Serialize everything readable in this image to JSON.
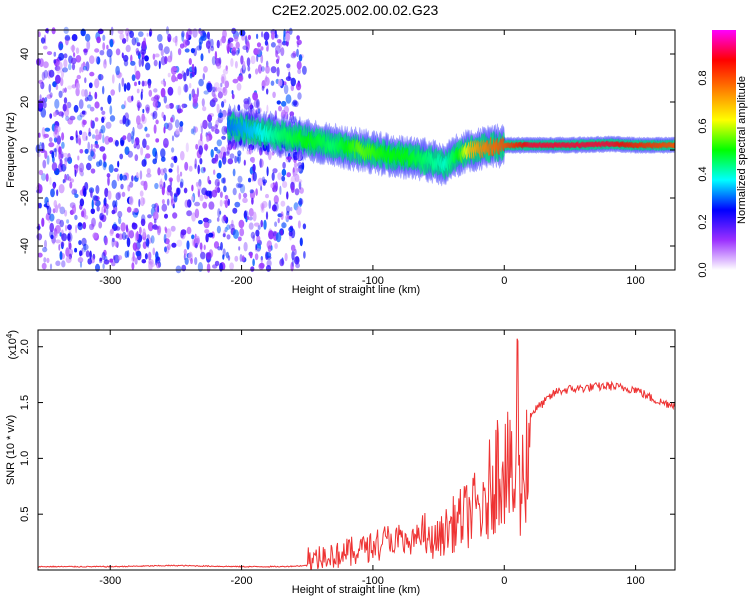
{
  "title": "C2E2.2025.002.00.02.G23",
  "chart_data": [
    {
      "type": "heatmap",
      "xlabel": "Height of straight line (km)",
      "ylabel": "Frequency (Hz)",
      "xlim": [
        -355,
        130
      ],
      "ylim": [
        -50,
        50
      ],
      "xticks": [
        -300,
        -200,
        -100,
        0,
        100
      ],
      "yticks": [
        -40,
        -20,
        0,
        20,
        40
      ],
      "colorbar": {
        "label": "Normalized spectral amplitude",
        "range": [
          0,
          1
        ],
        "ticks": [
          "0.0",
          "0.2",
          "0.4",
          "0.6",
          "0.8"
        ],
        "tick_values": [
          0.0,
          0.2,
          0.4,
          0.6,
          0.8
        ],
        "colormap": [
          "#ffffff",
          "#9b30ff",
          "#0000ff",
          "#00ffff",
          "#00ff00",
          "#ffff00",
          "#ff8000",
          "#ff0000",
          "#ff00ff"
        ]
      },
      "noise_region": {
        "x": [
          -355,
          -152
        ],
        "amplitude": [
          0.05,
          0.3
        ]
      },
      "signal_ridge": {
        "x": [
          -210,
          -190,
          -170,
          -150,
          -130,
          -110,
          -90,
          -75,
          -60,
          -45,
          -35,
          -25,
          -15,
          0,
          20,
          50,
          80,
          100,
          130
        ],
        "frequency": [
          10,
          8,
          6,
          4,
          2,
          0,
          -2,
          -3,
          -4,
          -6,
          -2,
          0,
          1,
          2,
          2,
          2,
          2.5,
          2,
          2
        ],
        "amplitude": [
          0.3,
          0.35,
          0.45,
          0.5,
          0.45,
          0.55,
          0.5,
          0.5,
          0.45,
          0.4,
          0.5,
          0.7,
          0.75,
          0.8,
          0.9,
          0.9,
          0.9,
          0.85,
          0.8
        ]
      }
    },
    {
      "type": "line",
      "xlabel": "Height of straight line (km)",
      "ylabel": "SNR (10 * v/v)",
      "multiplier": "(x10",
      "multiplier_exp": "4",
      "multiplier_close": ")",
      "xlim": [
        -355,
        130
      ],
      "ylim": [
        0,
        2.15
      ],
      "xticks": [
        -300,
        -200,
        -100,
        0,
        100
      ],
      "yticks": [
        0.5,
        1.0,
        1.5,
        2.0
      ],
      "ytick_labels": [
        "0.5",
        "1.0",
        "1.5",
        "2.0"
      ],
      "color": "#ee3333",
      "series": [
        {
          "x": [
            -355,
            -300,
            -250,
            -200,
            -170,
            -150,
            -130,
            -115,
            -100,
            -90,
            -80,
            -70,
            -60,
            -50,
            -40,
            -30,
            -20,
            -15,
            -10,
            0,
            5,
            8,
            10,
            12,
            15,
            20,
            30,
            40,
            50,
            60,
            70,
            80,
            90,
            100,
            110,
            120,
            130
          ],
          "y": [
            0.03,
            0.03,
            0.04,
            0.03,
            0.03,
            0.04,
            0.08,
            0.1,
            0.18,
            0.22,
            0.2,
            0.18,
            0.3,
            0.35,
            0.5,
            0.6,
            0.7,
            0.6,
            1.0,
            1.3,
            1.0,
            0.8,
            2.1,
            0.7,
            1.2,
            1.4,
            1.5,
            1.6,
            1.62,
            1.63,
            1.64,
            1.65,
            1.63,
            1.62,
            1.55,
            1.5,
            1.48
          ]
        }
      ]
    }
  ]
}
